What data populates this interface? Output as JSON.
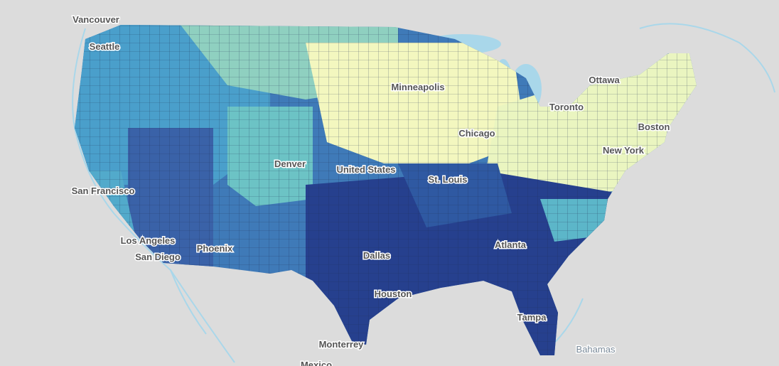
{
  "labels": [
    "Vancouver",
    "Seattle",
    "Ottawa",
    "Toronto",
    "Minneapolis",
    "Boston",
    "Chicago",
    "New York",
    "Denver",
    "United States",
    "San Francisco",
    "St. Louis",
    "Los Angeles",
    "San Diego",
    "Phoenix",
    "Dallas",
    "Atlanta",
    "Houston",
    "Tampa",
    "Monterrey",
    "Bahamas",
    "Mexico"
  ]
}
